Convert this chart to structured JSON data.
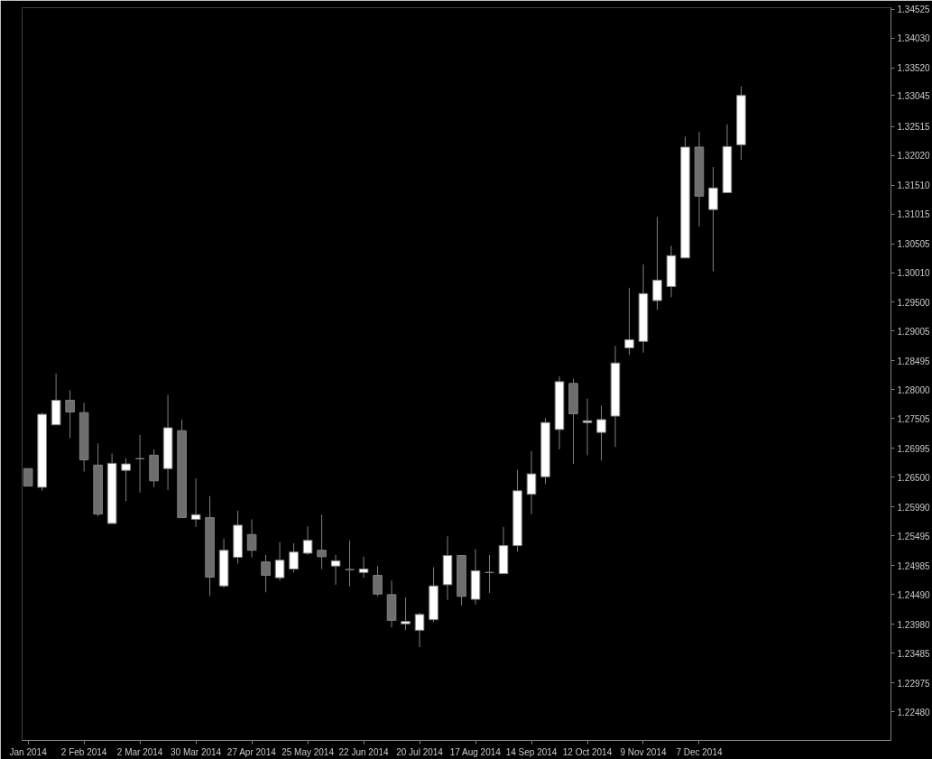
{
  "chart_data": {
    "type": "candlestick",
    "x": [
      "2014-01-05",
      "2014-01-12",
      "2014-01-19",
      "2014-01-26",
      "2014-02-02",
      "2014-02-09",
      "2014-02-16",
      "2014-02-23",
      "2014-03-02",
      "2014-03-09",
      "2014-03-16",
      "2014-03-23",
      "2014-03-30",
      "2014-04-06",
      "2014-04-13",
      "2014-04-20",
      "2014-04-27",
      "2014-05-04",
      "2014-05-11",
      "2014-05-18",
      "2014-05-25",
      "2014-06-01",
      "2014-06-08",
      "2014-06-15",
      "2014-06-22",
      "2014-06-29",
      "2014-07-06",
      "2014-07-13",
      "2014-07-20",
      "2014-07-27",
      "2014-08-03",
      "2014-08-10",
      "2014-08-17",
      "2014-08-24",
      "2014-08-31",
      "2014-09-07",
      "2014-09-14",
      "2014-09-21",
      "2014-09-28",
      "2014-10-05",
      "2014-10-12",
      "2014-10-19",
      "2014-10-26",
      "2014-11-02",
      "2014-11-09",
      "2014-11-16",
      "2014-11-23",
      "2014-11-30",
      "2014-12-07",
      "2014-12-14",
      "2014-12-21",
      "2014-12-28"
    ],
    "ohlc": [
      [
        1.2665,
        1.2665,
        1.2635,
        1.2635
      ],
      [
        1.2633,
        1.2761,
        1.2627,
        1.2758
      ],
      [
        1.274,
        1.2828,
        1.274,
        1.2782
      ],
      [
        1.2782,
        1.2799,
        1.2717,
        1.2762
      ],
      [
        1.2761,
        1.2778,
        1.266,
        1.268
      ],
      [
        1.2671,
        1.2708,
        1.2583,
        1.2587
      ],
      [
        1.2571,
        1.2691,
        1.2571,
        1.2674
      ],
      [
        1.2662,
        1.2683,
        1.2609,
        1.2673
      ],
      [
        1.2682,
        1.2723,
        1.2624,
        1.2682
      ],
      [
        1.2688,
        1.2698,
        1.2633,
        1.2644
      ],
      [
        1.2665,
        1.2791,
        1.2628,
        1.2735
      ],
      [
        1.273,
        1.2749,
        1.2581,
        1.2581
      ],
      [
        1.2578,
        1.2648,
        1.2565,
        1.2586
      ],
      [
        1.2581,
        1.2618,
        1.2447,
        1.2479
      ],
      [
        1.2464,
        1.2545,
        1.2461,
        1.2525
      ],
      [
        1.2513,
        1.2593,
        1.2502,
        1.2568
      ],
      [
        1.2552,
        1.2578,
        1.2513,
        1.2525
      ],
      [
        1.2505,
        1.2517,
        1.2453,
        1.2482
      ],
      [
        1.2478,
        1.2539,
        1.2473,
        1.2508
      ],
      [
        1.2493,
        1.2537,
        1.2487,
        1.2522
      ],
      [
        1.252,
        1.2566,
        1.2517,
        1.2542
      ],
      [
        1.2525,
        1.2586,
        1.2493,
        1.2514
      ],
      [
        1.2498,
        1.2517,
        1.2466,
        1.2507
      ],
      [
        1.2492,
        1.2542,
        1.2463,
        1.2492
      ],
      [
        1.2487,
        1.2514,
        1.2478,
        1.2493
      ],
      [
        1.2482,
        1.2498,
        1.2446,
        1.245
      ],
      [
        1.2449,
        1.2473,
        1.2393,
        1.2405
      ],
      [
        1.2399,
        1.2444,
        1.2388,
        1.2403
      ],
      [
        1.2388,
        1.2418,
        1.2359,
        1.2415
      ],
      [
        1.2406,
        1.2496,
        1.2402,
        1.2464
      ],
      [
        1.2466,
        1.2549,
        1.244,
        1.2516
      ],
      [
        1.2516,
        1.2517,
        1.2431,
        1.2446
      ],
      [
        1.2441,
        1.2527,
        1.2432,
        1.249
      ],
      [
        1.2487,
        1.2517,
        1.2452,
        1.2487
      ],
      [
        1.2485,
        1.2565,
        1.2484,
        1.2533
      ],
      [
        1.2533,
        1.2663,
        1.2523,
        1.2627
      ],
      [
        1.2621,
        1.2695,
        1.2587,
        1.2656
      ],
      [
        1.2651,
        1.2752,
        1.2639,
        1.2744
      ],
      [
        1.2732,
        1.2823,
        1.2698,
        1.2814
      ],
      [
        1.2811,
        1.2819,
        1.2673,
        1.2759
      ],
      [
        1.2744,
        1.2785,
        1.2688,
        1.2747
      ],
      [
        1.2727,
        1.2773,
        1.2679,
        1.2749
      ],
      [
        1.2755,
        1.2875,
        1.2702,
        1.2846
      ],
      [
        1.2872,
        1.2975,
        1.286,
        1.2886
      ],
      [
        1.2883,
        1.3015,
        1.2864,
        1.2965
      ],
      [
        1.2953,
        1.3096,
        1.2937,
        1.2988
      ],
      [
        1.2977,
        1.3047,
        1.2959,
        1.303
      ],
      [
        1.3026,
        1.3234,
        1.3026,
        1.3216
      ],
      [
        1.3216,
        1.3242,
        1.308,
        1.3132
      ],
      [
        1.3109,
        1.3182,
        1.3003,
        1.3146
      ],
      [
        1.3138,
        1.3255,
        1.3138,
        1.3217
      ],
      [
        1.322,
        1.332,
        1.3194,
        1.33045
      ]
    ],
    "colors": [
      "#6e6e6e",
      "#ffffff",
      "#ffffff",
      "#6e6e6e",
      "#6e6e6e",
      "#6e6e6e",
      "#ffffff",
      "#ffffff",
      "#808080",
      "#6e6e6e",
      "#ffffff",
      "#6e6e6e",
      "#ffffff",
      "#6e6e6e",
      "#ffffff",
      "#ffffff",
      "#6e6e6e",
      "#6e6e6e",
      "#ffffff",
      "#ffffff",
      "#ffffff",
      "#6e6e6e",
      "#ffffff",
      "#808080",
      "#ffffff",
      "#6e6e6e",
      "#6e6e6e",
      "#ffffff",
      "#ffffff",
      "#ffffff",
      "#ffffff",
      "#6e6e6e",
      "#ffffff",
      "#808080",
      "#ffffff",
      "#ffffff",
      "#ffffff",
      "#ffffff",
      "#ffffff",
      "#6e6e6e",
      "#ffffff",
      "#ffffff",
      "#ffffff",
      "#ffffff",
      "#ffffff",
      "#ffffff",
      "#ffffff",
      "#ffffff",
      "#6e6e6e",
      "#ffffff",
      "#ffffff",
      "#ffffff"
    ],
    "color": "#808080",
    "xlim": [
      "2014-01-02",
      "2015-03-13"
    ],
    "xticks": [
      {
        "value": "2014-01-05",
        "label": "Jan 2014"
      },
      {
        "value": "2014-02-02",
        "label": "2 Feb 2014"
      },
      {
        "value": "2014-03-02",
        "label": "2 Mar 2014"
      },
      {
        "value": "2014-03-30",
        "label": "30 Mar 2014"
      },
      {
        "value": "2014-04-27",
        "label": "27 Apr 2014"
      },
      {
        "value": "2014-05-25",
        "label": "25 May 2014"
      },
      {
        "value": "2014-06-22",
        "label": "22 Jun 2014"
      },
      {
        "value": "2014-07-20",
        "label": "20 Jul 2014"
      },
      {
        "value": "2014-08-17",
        "label": "17 Aug 2014"
      },
      {
        "value": "2014-09-14",
        "label": "14 Sep 2014"
      },
      {
        "value": "2014-10-12",
        "label": "12 Oct 2014"
      },
      {
        "value": "2014-11-09",
        "label": "9 Nov 2014"
      },
      {
        "value": "2014-12-07",
        "label": "7 Dec 2014"
      }
    ],
    "ylim": [
      1.2199,
      1.3455
    ],
    "yticks": [
      {
        "value": 1.34525,
        "label": "1.34525"
      },
      {
        "value": 1.3403,
        "label": "1.34030"
      },
      {
        "value": 1.3352,
        "label": "1.33520"
      },
      {
        "value": 1.33045,
        "label": "1.33045"
      },
      {
        "value": 1.32515,
        "label": "1.32515"
      },
      {
        "value": 1.3202,
        "label": "1.32020"
      },
      {
        "value": 1.3151,
        "label": "1.31510"
      },
      {
        "value": 1.31015,
        "label": "1.31015"
      },
      {
        "value": 1.30505,
        "label": "1.30505"
      },
      {
        "value": 1.3001,
        "label": "1.30010"
      },
      {
        "value": 1.295,
        "label": "1.29500"
      },
      {
        "value": 1.29005,
        "label": "1.29005"
      },
      {
        "value": 1.28495,
        "label": "1.28495"
      },
      {
        "value": 1.28,
        "label": "1.28000"
      },
      {
        "value": 1.27505,
        "label": "1.27505"
      },
      {
        "value": 1.26995,
        "label": "1.26995"
      },
      {
        "value": 1.265,
        "label": "1.26500"
      },
      {
        "value": 1.2599,
        "label": "1.25990"
      },
      {
        "value": 1.25495,
        "label": "1.25495"
      },
      {
        "value": 1.24985,
        "label": "1.24985"
      },
      {
        "value": 1.2449,
        "label": "1.24490"
      },
      {
        "value": 1.2398,
        "label": "1.23980"
      },
      {
        "value": 1.23485,
        "label": "1.23485"
      },
      {
        "value": 1.22975,
        "label": "1.22975"
      },
      {
        "value": 1.2248,
        "label": "1.22480"
      }
    ],
    "grid": false
  }
}
